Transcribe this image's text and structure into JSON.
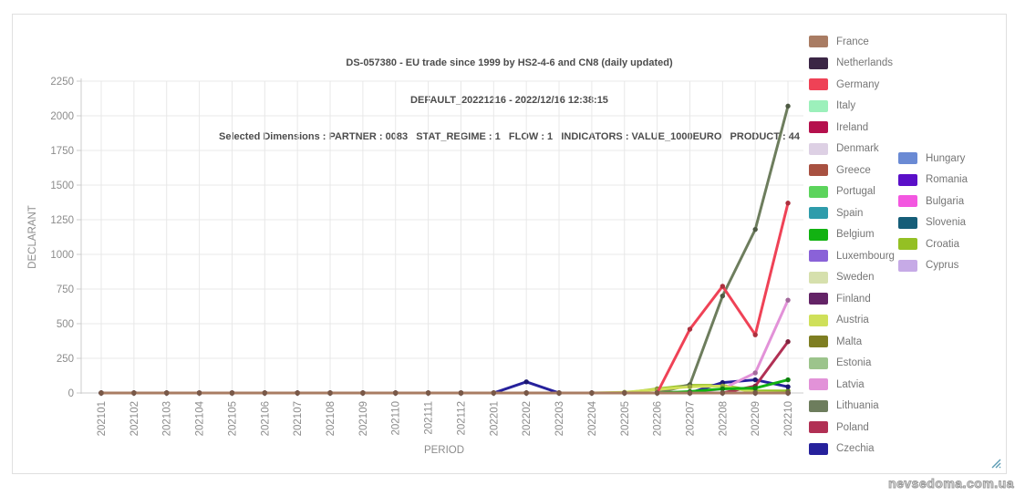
{
  "header": {
    "title_line1": "DS-057380 - EU trade since 1999 by HS2-4-6 and CN8 (daily updated)",
    "title_line2": "DEFAULT_20221216 - 2022/12/16 12:38:15",
    "title_line3": "Selected Dimensions : PARTNER : 0083   STAT_REGIME : 1   FLOW : 1   INDICATORS : VALUE_1000EURO   PRODUCT : 44"
  },
  "watermark": "nevsedoma.com.ua",
  "chart_data": {
    "type": "line",
    "title": "DS-057380 - EU trade since 1999 by HS2-4-6 and CN8 (daily updated)",
    "subtitle": "DEFAULT_20221216 - 2022/12/16 12:38:15",
    "dimensions_line": "Selected Dimensions : PARTNER : 0083   STAT_REGIME : 1   FLOW : 1   INDICATORS : VALUE_1000EURO   PRODUCT : 44",
    "xlabel": "PERIOD",
    "ylabel": "DECLARANT",
    "ylim": [
      0,
      2250
    ],
    "yticks": [
      0,
      250,
      500,
      750,
      1000,
      1250,
      1500,
      1750,
      2000,
      2250
    ],
    "grid": true,
    "legend_position": "right",
    "legend_column_break": 20,
    "categories": [
      "202101",
      "202102",
      "202103",
      "202104",
      "202105",
      "202106",
      "202107",
      "202108",
      "202109",
      "202110",
      "202111",
      "202112",
      "202201",
      "202202",
      "202203",
      "202204",
      "202205",
      "202206",
      "202207",
      "202208",
      "202209",
      "202210"
    ],
    "series": [
      {
        "name": "France",
        "color": "#a97c63",
        "values": [
          0,
          0,
          0,
          0,
          0,
          0,
          0,
          0,
          0,
          0,
          0,
          0,
          0,
          0,
          0,
          0,
          0,
          0,
          0,
          0,
          0,
          0
        ]
      },
      {
        "name": "Netherlands",
        "color": "#3b2645",
        "values": [
          0,
          0,
          0,
          0,
          0,
          0,
          0,
          0,
          0,
          0,
          0,
          0,
          0,
          0,
          0,
          0,
          0,
          0,
          0,
          0,
          0,
          0
        ]
      },
      {
        "name": "Germany",
        "color": "#ef4256",
        "values": [
          0,
          0,
          0,
          0,
          0,
          0,
          0,
          0,
          0,
          0,
          0,
          0,
          0,
          0,
          0,
          0,
          0,
          0,
          460,
          770,
          420,
          1370
        ]
      },
      {
        "name": "Italy",
        "color": "#9cf0bb",
        "values": [
          0,
          0,
          0,
          0,
          0,
          0,
          0,
          0,
          0,
          0,
          0,
          0,
          0,
          0,
          0,
          0,
          0,
          0,
          0,
          0,
          0,
          0
        ]
      },
      {
        "name": "Ireland",
        "color": "#b5104d",
        "values": [
          0,
          0,
          0,
          0,
          0,
          0,
          0,
          0,
          0,
          0,
          0,
          0,
          0,
          0,
          0,
          0,
          0,
          0,
          0,
          0,
          0,
          0
        ]
      },
      {
        "name": "Denmark",
        "color": "#ddd0e4",
        "values": [
          0,
          0,
          0,
          0,
          0,
          0,
          0,
          0,
          0,
          0,
          0,
          0,
          0,
          0,
          0,
          0,
          0,
          0,
          0,
          0,
          0,
          0
        ]
      },
      {
        "name": "Greece",
        "color": "#a85141",
        "values": [
          0,
          0,
          0,
          0,
          0,
          0,
          0,
          0,
          0,
          0,
          0,
          0,
          0,
          0,
          0,
          0,
          0,
          0,
          0,
          0,
          0,
          0
        ]
      },
      {
        "name": "Portugal",
        "color": "#5cd45c",
        "values": [
          0,
          0,
          0,
          0,
          0,
          0,
          0,
          0,
          0,
          0,
          0,
          0,
          0,
          0,
          0,
          0,
          0,
          0,
          0,
          0,
          0,
          0
        ]
      },
      {
        "name": "Spain",
        "color": "#2e9cab",
        "values": [
          0,
          0,
          0,
          0,
          0,
          0,
          0,
          0,
          0,
          0,
          0,
          0,
          0,
          0,
          0,
          0,
          0,
          0,
          0,
          0,
          0,
          0
        ]
      },
      {
        "name": "Belgium",
        "color": "#12b212",
        "values": [
          0,
          0,
          0,
          0,
          0,
          0,
          0,
          0,
          0,
          0,
          0,
          0,
          0,
          0,
          0,
          0,
          0,
          0,
          10,
          30,
          35,
          95
        ]
      },
      {
        "name": "Luxembourg",
        "color": "#8a62d8",
        "values": [
          0,
          0,
          0,
          0,
          0,
          0,
          0,
          0,
          0,
          0,
          0,
          0,
          0,
          0,
          0,
          0,
          0,
          0,
          0,
          0,
          0,
          0
        ]
      },
      {
        "name": "Sweden",
        "color": "#d6e0ad",
        "values": [
          0,
          0,
          0,
          0,
          0,
          0,
          0,
          0,
          0,
          0,
          0,
          0,
          0,
          0,
          0,
          0,
          0,
          0,
          0,
          0,
          0,
          0
        ]
      },
      {
        "name": "Finland",
        "color": "#632366",
        "values": [
          0,
          0,
          0,
          0,
          0,
          0,
          0,
          0,
          0,
          0,
          0,
          0,
          0,
          0,
          0,
          0,
          0,
          0,
          0,
          0,
          0,
          0
        ]
      },
      {
        "name": "Austria",
        "color": "#cfe05a",
        "values": [
          0,
          0,
          0,
          0,
          0,
          0,
          0,
          0,
          0,
          0,
          0,
          0,
          0,
          0,
          0,
          0,
          5,
          25,
          45,
          50,
          5,
          0
        ]
      },
      {
        "name": "Malta",
        "color": "#7e7e22",
        "values": [
          0,
          0,
          0,
          0,
          0,
          0,
          0,
          0,
          0,
          0,
          0,
          0,
          0,
          0,
          0,
          0,
          0,
          0,
          0,
          0,
          0,
          0
        ]
      },
      {
        "name": "Estonia",
        "color": "#9cc48c",
        "values": [
          0,
          0,
          0,
          0,
          0,
          0,
          0,
          0,
          0,
          0,
          0,
          0,
          0,
          0,
          0,
          0,
          0,
          0,
          0,
          0,
          0,
          0
        ]
      },
      {
        "name": "Latvia",
        "color": "#e292d8",
        "values": [
          0,
          0,
          0,
          0,
          0,
          0,
          0,
          0,
          0,
          0,
          0,
          0,
          0,
          0,
          0,
          0,
          0,
          0,
          0,
          30,
          145,
          670
        ]
      },
      {
        "name": "Lithuania",
        "color": "#6d7d5d",
        "values": [
          0,
          0,
          0,
          0,
          0,
          0,
          0,
          0,
          0,
          0,
          0,
          0,
          0,
          0,
          0,
          0,
          0,
          0,
          60,
          700,
          1180,
          2070
        ]
      },
      {
        "name": "Poland",
        "color": "#b13054",
        "values": [
          0,
          0,
          0,
          0,
          0,
          0,
          0,
          0,
          0,
          0,
          0,
          0,
          0,
          0,
          0,
          0,
          0,
          0,
          0,
          0,
          50,
          370
        ]
      },
      {
        "name": "Czechia",
        "color": "#26219c",
        "values": [
          0,
          0,
          0,
          0,
          0,
          0,
          0,
          0,
          0,
          0,
          0,
          0,
          0,
          80,
          0,
          0,
          0,
          0,
          0,
          75,
          95,
          45
        ]
      },
      {
        "name": "Hungary",
        "color": "#6a8ad4",
        "values": [
          0,
          0,
          0,
          0,
          0,
          0,
          0,
          0,
          0,
          0,
          0,
          0,
          0,
          0,
          0,
          0,
          0,
          0,
          0,
          0,
          0,
          0
        ]
      },
      {
        "name": "Romania",
        "color": "#5a0fc8",
        "values": [
          0,
          0,
          0,
          0,
          0,
          0,
          0,
          0,
          0,
          0,
          0,
          0,
          0,
          0,
          0,
          0,
          0,
          0,
          0,
          0,
          0,
          0
        ]
      },
      {
        "name": "Bulgaria",
        "color": "#f357e0",
        "values": [
          0,
          0,
          0,
          0,
          0,
          0,
          0,
          0,
          0,
          0,
          0,
          0,
          0,
          0,
          0,
          0,
          0,
          0,
          0,
          0,
          0,
          0
        ]
      },
      {
        "name": "Slovenia",
        "color": "#155d78",
        "values": [
          0,
          0,
          0,
          0,
          0,
          0,
          0,
          0,
          0,
          0,
          0,
          0,
          0,
          0,
          0,
          0,
          0,
          0,
          0,
          0,
          0,
          0
        ]
      },
      {
        "name": "Croatia",
        "color": "#94c024",
        "values": [
          0,
          0,
          0,
          0,
          0,
          0,
          0,
          0,
          0,
          0,
          0,
          0,
          0,
          0,
          0,
          0,
          0,
          30,
          55,
          55,
          15,
          15
        ]
      },
      {
        "name": "Cyprus",
        "color": "#c6aae6",
        "values": [
          0,
          0,
          0,
          0,
          0,
          0,
          0,
          0,
          0,
          0,
          0,
          0,
          0,
          0,
          0,
          0,
          0,
          0,
          0,
          0,
          0,
          0
        ]
      }
    ]
  }
}
